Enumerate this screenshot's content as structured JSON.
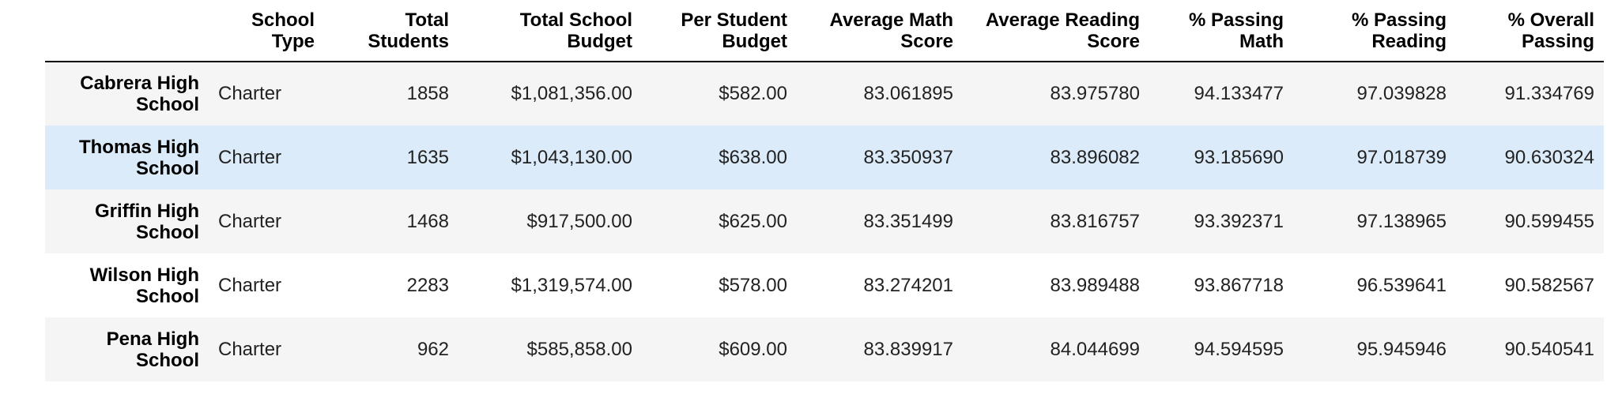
{
  "table": {
    "columns": [
      "",
      "School Type",
      "Total Students",
      "Total School Budget",
      "Per Student Budget",
      "Average Math Score",
      "Average Reading Score",
      "% Passing Math",
      "% Passing Reading",
      "% Overall Passing"
    ],
    "rows": [
      {
        "school": "Cabrera High School",
        "type": "Charter",
        "students": "1858",
        "budget": "$1,081,356.00",
        "per_student": "$582.00",
        "avg_math": "83.061895",
        "avg_reading": "83.975780",
        "pass_math": "94.133477",
        "pass_reading": "97.039828",
        "overall": "91.334769"
      },
      {
        "school": "Thomas High School",
        "type": "Charter",
        "students": "1635",
        "budget": "$1,043,130.00",
        "per_student": "$638.00",
        "avg_math": "83.350937",
        "avg_reading": "83.896082",
        "pass_math": "93.185690",
        "pass_reading": "97.018739",
        "overall": "90.630324"
      },
      {
        "school": "Griffin High School",
        "type": "Charter",
        "students": "1468",
        "budget": "$917,500.00",
        "per_student": "$625.00",
        "avg_math": "83.351499",
        "avg_reading": "83.816757",
        "pass_math": "93.392371",
        "pass_reading": "97.138965",
        "overall": "90.599455"
      },
      {
        "school": "Wilson High School",
        "type": "Charter",
        "students": "2283",
        "budget": "$1,319,574.00",
        "per_student": "$578.00",
        "avg_math": "83.274201",
        "avg_reading": "83.989488",
        "pass_math": "93.867718",
        "pass_reading": "96.539641",
        "overall": "90.582567"
      },
      {
        "school": "Pena High School",
        "type": "Charter",
        "students": "962",
        "budget": "$585,858.00",
        "per_student": "$609.00",
        "avg_math": "83.839917",
        "avg_reading": "84.044699",
        "pass_math": "94.594595",
        "pass_reading": "95.945946",
        "overall": "90.540541"
      }
    ],
    "highlighted_row": 1
  },
  "colors": {
    "header_rule": "#000000",
    "stripe": "#f5f5f5",
    "hover": "#dcebf9"
  }
}
